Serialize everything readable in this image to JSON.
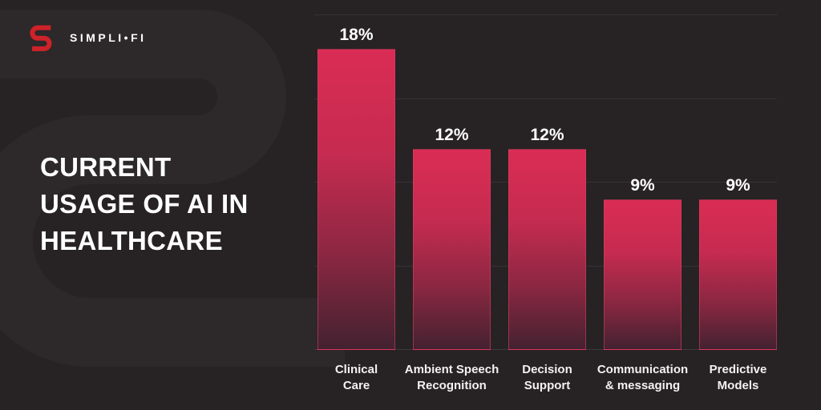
{
  "brand": {
    "name": "SIMPLI•FI",
    "logo_color": "#ce2229"
  },
  "title": {
    "lines": [
      "CURRENT",
      "USAGE OF AI IN",
      "HEALTHCARE"
    ]
  },
  "chart_data": {
    "type": "bar",
    "title": "CURRENT USAGE OF AI IN HEALTHCARE",
    "categories": [
      "Clinical Care",
      "Ambient Speech Recognition",
      "Decision Support",
      "Communication & messaging",
      "Predictive Models"
    ],
    "category_label_lines": [
      [
        "Clinical",
        "Care"
      ],
      [
        "Ambient Speech",
        "Recognition"
      ],
      [
        "Decision",
        "Support"
      ],
      [
        "Communication",
        "& messaging"
      ],
      [
        "Predictive",
        "Models"
      ]
    ],
    "values": [
      18,
      12,
      12,
      9,
      9
    ],
    "value_labels": [
      "18%",
      "12%",
      "12%",
      "9%",
      "9%"
    ],
    "xlabel": "",
    "ylabel": "",
    "ylim": [
      0,
      20
    ],
    "gridlines": [
      0,
      5,
      10,
      15,
      20
    ],
    "grid": "horizontal only",
    "legend_position": "none",
    "colors": {
      "bar_top": "#da2c54",
      "bar_bottom": "#432230",
      "bar_border": "#de4065",
      "gridline": "rgba(255,255,255,0.08)",
      "label_text": "#ffffff"
    }
  },
  "colors": {
    "background": "#272223",
    "watermark": "#2d282a",
    "text": "#ffffff"
  }
}
